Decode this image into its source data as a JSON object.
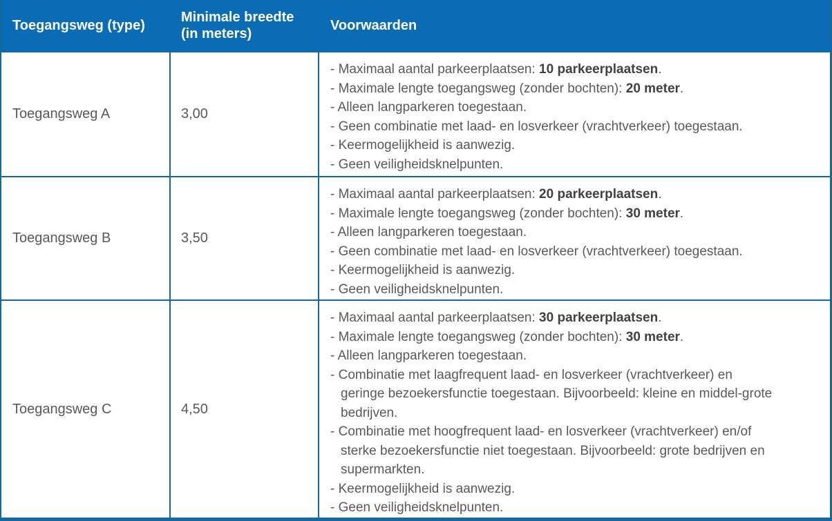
{
  "table": {
    "header": {
      "col_type": "Toegangsweg (type)",
      "col_width": "Minimale breedte (in meters)",
      "col_conditions": "Voorwaarden"
    },
    "rows": [
      {
        "type": "Toegangsweg A",
        "min_width": "3,00",
        "conditions": [
          [
            {
              "t": "Maximaal aantal parkeerplaatsen: "
            },
            {
              "t": "10 parkeerplaatsen",
              "b": true
            },
            {
              "t": "."
            }
          ],
          [
            {
              "t": "Maximale lengte toegangsweg (zonder bochten): "
            },
            {
              "t": "20 meter",
              "b": true
            },
            {
              "t": "."
            }
          ],
          [
            {
              "t": "Alleen langparkeren toegestaan."
            }
          ],
          [
            {
              "t": "Geen combinatie met laad- en losverkeer (vrachtverkeer) toegestaan."
            }
          ],
          [
            {
              "t": "Keermogelijkheid is aanwezig."
            }
          ],
          [
            {
              "t": "Geen veiligheidsknelpunten."
            }
          ]
        ]
      },
      {
        "type": "Toegangsweg B",
        "min_width": "3,50",
        "conditions": [
          [
            {
              "t": "Maximaal aantal parkeerplaatsen: "
            },
            {
              "t": "20 parkeerplaatsen",
              "b": true
            },
            {
              "t": "."
            }
          ],
          [
            {
              "t": "Maximale lengte toegangsweg (zonder bochten): "
            },
            {
              "t": "30 meter",
              "b": true
            },
            {
              "t": "."
            }
          ],
          [
            {
              "t": "Alleen langparkeren toegestaan."
            }
          ],
          [
            {
              "t": "Geen combinatie met laad- en losverkeer (vrachtverkeer) toegestaan."
            }
          ],
          [
            {
              "t": "Keermogelijkheid is aanwezig."
            }
          ],
          [
            {
              "t": "Geen veiligheidsknelpunten."
            }
          ]
        ]
      },
      {
        "type": "Toegangsweg C",
        "min_width": "4,50",
        "conditions": [
          [
            {
              "t": "Maximaal aantal parkeerplaatsen: "
            },
            {
              "t": "30 parkeerplaatsen",
              "b": true
            },
            {
              "t": "."
            }
          ],
          [
            {
              "t": "Maximale lengte toegangsweg (zonder bochten): "
            },
            {
              "t": "30 meter",
              "b": true
            },
            {
              "t": "."
            }
          ],
          [
            {
              "t": "Alleen langparkeren toegestaan."
            }
          ],
          [
            {
              "t": "Combinatie met laagfrequent laad- en losverkeer (vrachtverkeer) en geringe bezoekersfunctie toegestaan. Bijvoorbeeld: kleine en middel-grote bedrijven."
            }
          ],
          [
            {
              "t": "Combinatie met hoogfrequent laad- en losverkeer (vrachtverkeer) en/of sterke bezoekersfunctie niet toegestaan. Bijvoorbeeld: grote bedrijven en supermarkten."
            }
          ],
          [
            {
              "t": "Keermogelijkheid is aanwezig."
            }
          ],
          [
            {
              "t": "Geen veiligheidsknelpunten."
            }
          ]
        ]
      }
    ]
  },
  "colors": {
    "header_bg": "#0A6CB5",
    "border": "#15689F",
    "text": "#58595B",
    "text_bold": "#414042",
    "header_text": "#FFFFFF"
  }
}
